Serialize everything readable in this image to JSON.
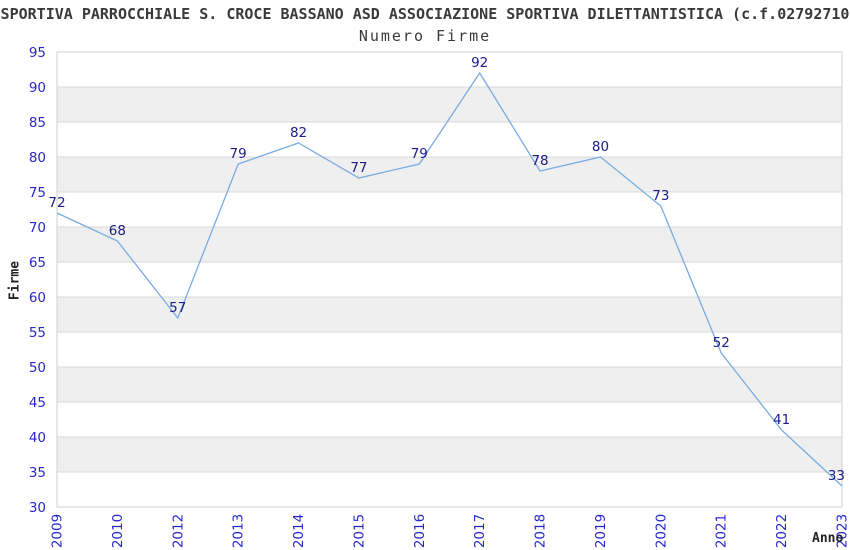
{
  "header": {
    "supertitle": "SPORTIVA PARROCCHIALE S. CROCE BASSANO ASD ASSOCIAZIONE SPORTIVA DILETTANTISTICA (c.f.02792710",
    "subtitle": "Numero Firme"
  },
  "chart_data": {
    "type": "line",
    "title": "Numero Firme",
    "xlabel": "Anno",
    "ylabel": "Firme",
    "categories": [
      "2009",
      "2010",
      "2012",
      "2013",
      "2014",
      "2015",
      "2016",
      "2017",
      "2018",
      "2019",
      "2020",
      "2021",
      "2022",
      "2023"
    ],
    "values": [
      72,
      68,
      57,
      79,
      82,
      77,
      79,
      92,
      78,
      80,
      73,
      52,
      41,
      33
    ],
    "ylim": [
      30,
      95
    ],
    "ytick_step": 5,
    "grid": "horizontal-only",
    "legend": "none",
    "x_tick_rotation": -90,
    "notes": "year 2011 absent; categories evenly spaced; every point labeled with its value",
    "colors": {
      "line": "#79ace1",
      "data_label": "#1c1c8a",
      "tick_label": "#2727cc",
      "band_fill": "#efefef",
      "gridline": "#d9d9d9",
      "plot_border": "#cfcfcf",
      "title_text": "#3a3a3a"
    }
  }
}
